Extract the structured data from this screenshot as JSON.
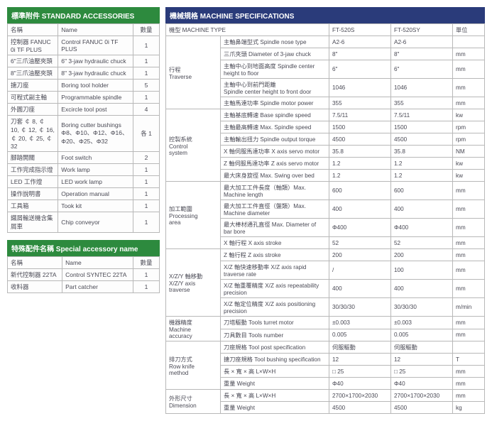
{
  "colors": {
    "green": "#2d8a3e",
    "navy": "#2a3b7a",
    "border": "#b8b8b8"
  },
  "accessories": {
    "title": "標準附件 STANDARD ACCESSORIES",
    "head": {
      "name_zh": "名稱",
      "name_en": "Name",
      "qty": "數量"
    },
    "rows": [
      {
        "zh": "控制器 FANUC 0i TF PLUS",
        "en": "Control FANUC 0i TF PLUS",
        "qty": "1"
      },
      {
        "zh": "6\"三爪油壓夾頭",
        "en": "6\" 3-jaw hydraulic chuck",
        "qty": "1"
      },
      {
        "zh": "8\"三爪油壓夾頭",
        "en": "8\" 3-jaw hydraulic chuck",
        "qty": "1"
      },
      {
        "zh": "搪刀座",
        "en": "Boring tool holder",
        "qty": "5"
      },
      {
        "zh": "可程式副主軸",
        "en": "Programmable spindle",
        "qty": "1"
      },
      {
        "zh": "外圓刀座",
        "en": "Excircle tool post",
        "qty": "4"
      },
      {
        "zh": "刀套 ￠ 8, ￠ 10, ￠ 12, ￠ 16, ￠ 20, ￠ 25, ￠ 32",
        "en": "Boring cutter bushings Φ8、Φ10、Φ12、Φ16、Φ20、Φ25、Φ32",
        "qty": "各 1"
      },
      {
        "zh": "腳踏開關",
        "en": "Foot switch",
        "qty": "2"
      },
      {
        "zh": "工作完成指示燈",
        "en": "Work lamp",
        "qty": "1"
      },
      {
        "zh": "LED 工作燈",
        "en": "LED work lamp",
        "qty": "1"
      },
      {
        "zh": "操作說明書",
        "en": "Operation manual",
        "qty": "1"
      },
      {
        "zh": "工具箱",
        "en": "Took kit",
        "qty": "1"
      },
      {
        "zh": "鐵屑輸送機含集屑車",
        "en": "Chip conveyor",
        "qty": "1"
      }
    ]
  },
  "special": {
    "title": "特殊配件名稱 Special accessory name",
    "head": {
      "name_zh": "名稱",
      "name_en": "Name",
      "qty": "數量"
    },
    "rows": [
      {
        "zh": "新代控制器 22TA",
        "en": "Control SYNTEC 22TA",
        "qty": "1"
      },
      {
        "zh": "收料器",
        "en": "Part catcher",
        "qty": "1"
      }
    ]
  },
  "specs": {
    "title": "機械規格 MACHINE SPECIFICATIONS",
    "head": {
      "type": "機型 MACHINE TYPE",
      "m1": "FT-520S",
      "m2": "FT-520SY",
      "unit": "單位"
    },
    "groups": [
      {
        "label": "行程\nTraverse",
        "rows": [
          {
            "n": "主軸鼻端型式 Spindle nose type",
            "a": "A2-6",
            "b": "A2-6",
            "u": ""
          },
          {
            "n": "三爪夾頭 Diameter of 3-jaw chuck",
            "a": "8\"",
            "b": "8\"",
            "u": "mm"
          },
          {
            "n": "主軸中心到地面高度 Spindle center height to floor",
            "a": "6\"",
            "b": "6\"",
            "u": "mm"
          },
          {
            "n": "主軸中心到前門距離\nSpindle center height to front door",
            "a": "1046",
            "b": "1046",
            "u": "mm"
          },
          {
            "n": "主軸馬達功率 Spindle motor power",
            "a": "355",
            "b": "355",
            "u": "mm"
          }
        ]
      },
      {
        "label": "控製系統\nControl\nsystem",
        "rows": [
          {
            "n": "主軸基底轉速 Base spindle speed",
            "a": "7.5/11",
            "b": "7.5/11",
            "u": "kw"
          },
          {
            "n": "主軸最高轉速 Max. Spindle speed",
            "a": "1500",
            "b": "1500",
            "u": "rpm"
          },
          {
            "n": "主軸輸出扭力 Spindle output torque",
            "a": "4500",
            "b": "4500",
            "u": "rpm"
          },
          {
            "n": "X 軸伺服馬達功率 X axis servo motor",
            "a": "35.8",
            "b": "35.8",
            "u": "NM"
          },
          {
            "n": "Z 軸伺服馬達功率 Z axis servo motor",
            "a": "1.2",
            "b": "1.2",
            "u": "kw"
          },
          {
            "n": "最大床身旋徑 Max. Swing over bed",
            "a": "1.2",
            "b": "1.2",
            "u": "kw"
          }
        ]
      },
      {
        "label": "加工範圍\nProcessing\narea",
        "rows": [
          {
            "n": "最大加工工件長度（軸類）Max. Machine length",
            "a": "600",
            "b": "600",
            "u": "mm"
          },
          {
            "n": "最大加工工件直徑（盤類）Max. Machine diameter",
            "a": "400",
            "b": "400",
            "u": "mm"
          },
          {
            "n": "最大棒材通孔直徑 Max. Diameter of bar bore",
            "a": "Φ400",
            "b": "Φ400",
            "u": "mm"
          },
          {
            "n": "X 軸行程 X axis stroke",
            "a": "52",
            "b": "52",
            "u": "mm"
          }
        ]
      },
      {
        "label": "X/Z/Y 軸移動\nX/Z/Y axis\ntraverse",
        "rows": [
          {
            "n": "Z 軸行程 Z axis stroke",
            "a": "200",
            "b": "200",
            "u": "mm"
          },
          {
            "n": "X/Z 軸快速移動率 X/Z axis rapid traverse rate",
            "a": "/",
            "b": "100",
            "u": "mm"
          },
          {
            "n": "X/Z 軸重覆精度 X/Z axis repeatability precision",
            "a": "400",
            "b": "400",
            "u": "mm"
          },
          {
            "n": "X/Z 軸定位精度 X/Z axis positioning precision",
            "a": "30/30/30",
            "b": "30/30/30",
            "u": "m/min"
          }
        ]
      },
      {
        "label": "機器精度\nMachine\naccuracy",
        "rows": [
          {
            "n": "刀塔驅動 Tools turret motor",
            "a": "±0.003",
            "b": "±0.003",
            "u": "mm"
          },
          {
            "n": "刀具數目 Tools number",
            "a": "0.005",
            "b": "0.005",
            "u": "mm"
          }
        ]
      },
      {
        "label": "排刀方式\nRow knife\nmethod",
        "rows": [
          {
            "n": "刀座規格 Tool post specification",
            "a": "伺服驅動",
            "b": "伺服驅動",
            "u": ""
          },
          {
            "n": "搪刀座規格 Tool bushing specification",
            "a": "12",
            "b": "12",
            "u": "T"
          },
          {
            "n": "長 × 寬 × 高 L×W×H",
            "a": "□ 25",
            "b": "□ 25",
            "u": "mm"
          },
          {
            "n": "重量 Weight",
            "a": "Φ40",
            "b": "Φ40",
            "u": "mm"
          }
        ]
      },
      {
        "label": "外形尺寸\nDimension",
        "rows": [
          {
            "n": "長 × 寬 × 高 L×W×H",
            "a": "2700×1700×2030",
            "b": "2700×1700×2030",
            "u": "mm"
          },
          {
            "n": "重量 Weight",
            "a": "4500",
            "b": "4500",
            "u": "kg"
          }
        ]
      }
    ]
  }
}
